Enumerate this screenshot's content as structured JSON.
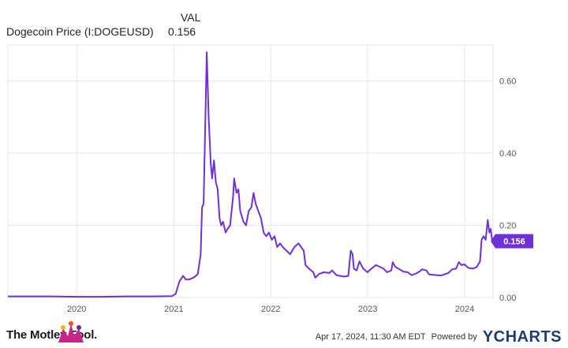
{
  "header": {
    "column_title": "VAL",
    "series_label": "Dogecoin Price (I:DOGEUSD)",
    "current_value": "0.156"
  },
  "colors": {
    "line": "#7030d8",
    "grid": "#e6e6e6",
    "tick_text": "#555555",
    "badge_bg": "#7030d8",
    "badge_text": "#ffffff"
  },
  "footer": {
    "brand": "The Motley Fool.",
    "timestamp": "Apr 17, 2024, 11:30 AM EDT",
    "powered_by": "Powered by",
    "ycharts": "YCHARTS"
  },
  "chart_data": {
    "type": "line",
    "title": "",
    "xlabel": "",
    "ylabel": "",
    "ylim": [
      0,
      0.7
    ],
    "xlim": [
      "2019-04-17",
      "2024-04-17"
    ],
    "grid": true,
    "yaxis_position": "right",
    "y_ticks": [
      "0.00",
      "0.20",
      "0.40",
      "0.60"
    ],
    "y_tick_values": [
      0,
      0.2,
      0.4,
      0.6
    ],
    "x_ticks": [
      "2020",
      "2021",
      "2022",
      "2023",
      "2024"
    ],
    "x_tick_dates": [
      "2020-01-01",
      "2021-01-01",
      "2022-01-01",
      "2023-01-01",
      "2024-01-01"
    ],
    "end_label": "0.156",
    "series": [
      {
        "name": "Dogecoin Price (I:DOGEUSD)",
        "points": [
          [
            "2019-04-17",
            0.003
          ],
          [
            "2019-07-01",
            0.003
          ],
          [
            "2019-10-01",
            0.003
          ],
          [
            "2020-01-01",
            0.002
          ],
          [
            "2020-04-01",
            0.002
          ],
          [
            "2020-07-01",
            0.003
          ],
          [
            "2020-10-01",
            0.003
          ],
          [
            "2020-12-25",
            0.004
          ],
          [
            "2021-01-08",
            0.01
          ],
          [
            "2021-01-22",
            0.045
          ],
          [
            "2021-02-05",
            0.06
          ],
          [
            "2021-02-15",
            0.05
          ],
          [
            "2021-02-28",
            0.05
          ],
          [
            "2021-03-15",
            0.055
          ],
          [
            "2021-03-25",
            0.06
          ],
          [
            "2021-04-01",
            0.065
          ],
          [
            "2021-04-12",
            0.12
          ],
          [
            "2021-04-17",
            0.25
          ],
          [
            "2021-04-23",
            0.26
          ],
          [
            "2021-05-05",
            0.68
          ],
          [
            "2021-05-12",
            0.5
          ],
          [
            "2021-05-20",
            0.37
          ],
          [
            "2021-05-25",
            0.33
          ],
          [
            "2021-06-01",
            0.38
          ],
          [
            "2021-06-08",
            0.32
          ],
          [
            "2021-06-15",
            0.3
          ],
          [
            "2021-06-22",
            0.22
          ],
          [
            "2021-06-28",
            0.2
          ],
          [
            "2021-07-05",
            0.21
          ],
          [
            "2021-07-15",
            0.18
          ],
          [
            "2021-07-22",
            0.19
          ],
          [
            "2021-08-01",
            0.2
          ],
          [
            "2021-08-12",
            0.28
          ],
          [
            "2021-08-16",
            0.33
          ],
          [
            "2021-08-25",
            0.29
          ],
          [
            "2021-09-01",
            0.3
          ],
          [
            "2021-09-08",
            0.24
          ],
          [
            "2021-09-20",
            0.21
          ],
          [
            "2021-09-30",
            0.2
          ],
          [
            "2021-10-10",
            0.24
          ],
          [
            "2021-10-20",
            0.25
          ],
          [
            "2021-10-28",
            0.29
          ],
          [
            "2021-11-05",
            0.26
          ],
          [
            "2021-11-15",
            0.24
          ],
          [
            "2021-11-25",
            0.22
          ],
          [
            "2021-12-05",
            0.18
          ],
          [
            "2021-12-15",
            0.17
          ],
          [
            "2021-12-25",
            0.18
          ],
          [
            "2022-01-05",
            0.16
          ],
          [
            "2022-01-15",
            0.17
          ],
          [
            "2022-01-25",
            0.14
          ],
          [
            "2022-02-05",
            0.15
          ],
          [
            "2022-02-15",
            0.14
          ],
          [
            "2022-03-01",
            0.13
          ],
          [
            "2022-03-15",
            0.12
          ],
          [
            "2022-03-31",
            0.14
          ],
          [
            "2022-04-15",
            0.15
          ],
          [
            "2022-04-25",
            0.14
          ],
          [
            "2022-05-05",
            0.13
          ],
          [
            "2022-05-12",
            0.09
          ],
          [
            "2022-05-25",
            0.08
          ],
          [
            "2022-06-10",
            0.07
          ],
          [
            "2022-06-18",
            0.055
          ],
          [
            "2022-07-01",
            0.065
          ],
          [
            "2022-07-20",
            0.07
          ],
          [
            "2022-08-10",
            0.068
          ],
          [
            "2022-08-20",
            0.075
          ],
          [
            "2022-09-05",
            0.062
          ],
          [
            "2022-09-20",
            0.06
          ],
          [
            "2022-10-05",
            0.058
          ],
          [
            "2022-10-20",
            0.06
          ],
          [
            "2022-10-29",
            0.13
          ],
          [
            "2022-11-05",
            0.12
          ],
          [
            "2022-11-10",
            0.08
          ],
          [
            "2022-11-20",
            0.075
          ],
          [
            "2022-12-01",
            0.1
          ],
          [
            "2022-12-15",
            0.08
          ],
          [
            "2022-12-31",
            0.07
          ],
          [
            "2023-01-15",
            0.08
          ],
          [
            "2023-02-01",
            0.09
          ],
          [
            "2023-02-15",
            0.085
          ],
          [
            "2023-03-01",
            0.08
          ],
          [
            "2023-03-15",
            0.07
          ],
          [
            "2023-03-31",
            0.075
          ],
          [
            "2023-04-05",
            0.098
          ],
          [
            "2023-04-15",
            0.085
          ],
          [
            "2023-05-01",
            0.078
          ],
          [
            "2023-05-15",
            0.072
          ],
          [
            "2023-06-01",
            0.07
          ],
          [
            "2023-06-15",
            0.062
          ],
          [
            "2023-07-01",
            0.066
          ],
          [
            "2023-07-15",
            0.072
          ],
          [
            "2023-07-25",
            0.078
          ],
          [
            "2023-08-10",
            0.075
          ],
          [
            "2023-08-20",
            0.064
          ],
          [
            "2023-09-05",
            0.063
          ],
          [
            "2023-09-20",
            0.062
          ],
          [
            "2023-10-05",
            0.061
          ],
          [
            "2023-10-20",
            0.065
          ],
          [
            "2023-11-01",
            0.068
          ],
          [
            "2023-11-15",
            0.078
          ],
          [
            "2023-11-30",
            0.08
          ],
          [
            "2023-12-10",
            0.098
          ],
          [
            "2023-12-20",
            0.09
          ],
          [
            "2023-12-31",
            0.092
          ],
          [
            "2024-01-15",
            0.082
          ],
          [
            "2024-02-01",
            0.08
          ],
          [
            "2024-02-15",
            0.084
          ],
          [
            "2024-02-28",
            0.1
          ],
          [
            "2024-03-05",
            0.16
          ],
          [
            "2024-03-12",
            0.17
          ],
          [
            "2024-03-20",
            0.16
          ],
          [
            "2024-03-28",
            0.215
          ],
          [
            "2024-04-03",
            0.18
          ],
          [
            "2024-04-08",
            0.19
          ],
          [
            "2024-04-13",
            0.16
          ],
          [
            "2024-04-17",
            0.156
          ]
        ]
      }
    ]
  }
}
